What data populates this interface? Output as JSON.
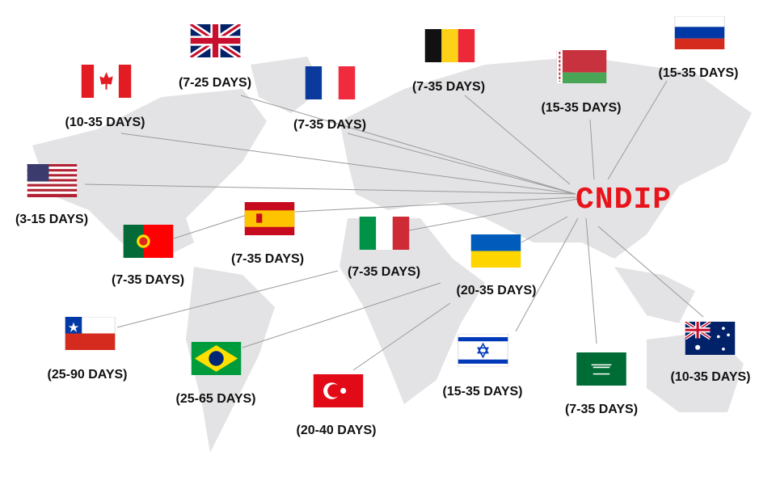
{
  "hub": {
    "label": "CNDIP",
    "color": "#e8141b"
  },
  "destinations": [
    {
      "country": "United Kingdom",
      "label": "(7-25 DAYS)"
    },
    {
      "country": "Canada",
      "label": "(10-35 DAYS)"
    },
    {
      "country": "France",
      "label": "(7-35 DAYS)"
    },
    {
      "country": "Belgium",
      "label": "(7-35 DAYS)"
    },
    {
      "country": "Belarus",
      "label": "(15-35 DAYS)"
    },
    {
      "country": "Russia",
      "label": "(15-35 DAYS)"
    },
    {
      "country": "United States",
      "label": "(3-15 DAYS)"
    },
    {
      "country": "Spain",
      "label": "(7-35 DAYS)"
    },
    {
      "country": "Portugal",
      "label": "(7-35 DAYS)"
    },
    {
      "country": "Italy",
      "label": "(7-35 DAYS)"
    },
    {
      "country": "Ukraine",
      "label": "(20-35 DAYS)"
    },
    {
      "country": "Chile",
      "label": "(25-90 DAYS)"
    },
    {
      "country": "Brazil",
      "label": "(25-65 DAYS)"
    },
    {
      "country": "Turkey",
      "label": "(20-40 DAYS)"
    },
    {
      "country": "Israel",
      "label": "(15-35 DAYS)"
    },
    {
      "country": "Saudi Arabia",
      "label": "(7-35 DAYS)"
    },
    {
      "country": "Australia",
      "label": "(10-35 DAYS)"
    }
  ]
}
